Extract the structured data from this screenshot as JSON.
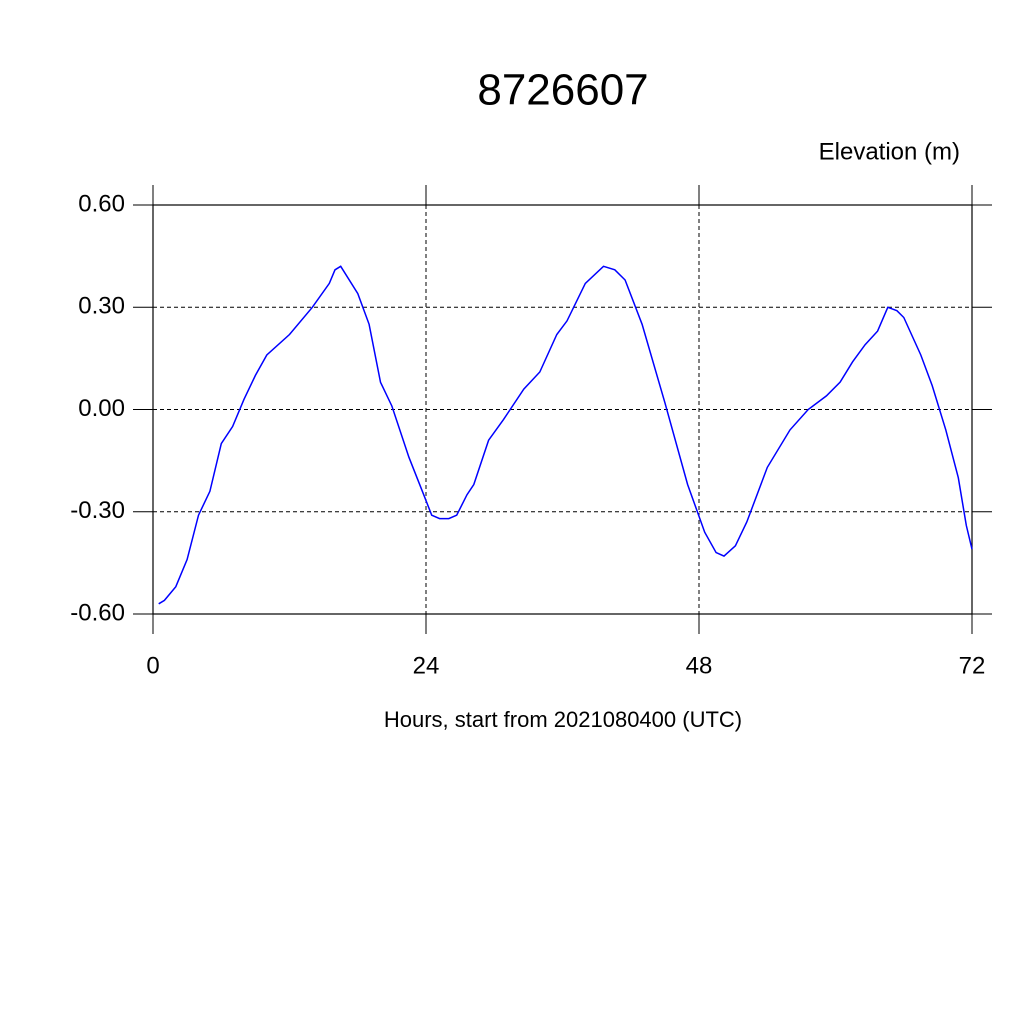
{
  "chart_data": {
    "type": "line",
    "title": "8726607",
    "y_label": "Elevation (m)",
    "x_label": "Hours, start from 2021080400 (UTC)",
    "x": [
      0.5,
      1,
      2,
      3,
      4,
      5,
      6,
      7,
      8,
      9,
      10,
      12,
      14,
      15.5,
      16,
      16.5,
      18,
      19,
      20,
      21,
      22.5,
      23.8,
      24.5,
      25.2,
      26,
      26.7,
      27.6,
      28.2,
      29.5,
      30.8,
      32.6,
      34,
      35.5,
      36.4,
      38,
      39.6,
      40.6,
      41.5,
      43,
      45,
      47,
      48.5,
      49.5,
      50.2,
      51.2,
      52.2,
      54,
      56,
      57.6,
      59.2,
      60.4,
      61.5,
      62.6,
      63.7,
      64.6,
      65.4,
      66,
      67.5,
      68.5,
      69.7,
      70.8,
      71.5,
      72
    ],
    "series": [
      {
        "name": "Elevation",
        "color": "#0000ff",
        "values": [
          -0.57,
          -0.56,
          -0.52,
          -0.44,
          -0.31,
          -0.24,
          -0.1,
          -0.05,
          0.03,
          0.1,
          0.16,
          0.22,
          0.3,
          0.37,
          0.41,
          0.42,
          0.34,
          0.25,
          0.08,
          0.01,
          -0.14,
          -0.25,
          -0.31,
          -0.32,
          -0.32,
          -0.31,
          -0.25,
          -0.22,
          -0.09,
          -0.03,
          0.06,
          0.11,
          0.22,
          0.26,
          0.37,
          0.42,
          0.41,
          0.38,
          0.25,
          0.02,
          -0.22,
          -0.36,
          -0.42,
          -0.43,
          -0.4,
          -0.33,
          -0.17,
          -0.06,
          0.0,
          0.04,
          0.08,
          0.14,
          0.19,
          0.23,
          0.3,
          0.29,
          0.27,
          0.16,
          0.07,
          -0.06,
          -0.2,
          -0.34,
          -0.41
        ]
      }
    ],
    "xlim": [
      0,
      72
    ],
    "xticks": [
      0,
      24,
      48,
      72
    ],
    "ylim": [
      -0.6,
      0.6
    ],
    "yticks": [
      {
        "value": -0.6,
        "label": "-0.60"
      },
      {
        "value": -0.3,
        "label": "-0.30"
      },
      {
        "value": 0,
        "label": "0.00"
      },
      {
        "value": 0.3,
        "label": "0.30"
      },
      {
        "value": 0.6,
        "label": "0.60"
      }
    ],
    "grid": true
  }
}
